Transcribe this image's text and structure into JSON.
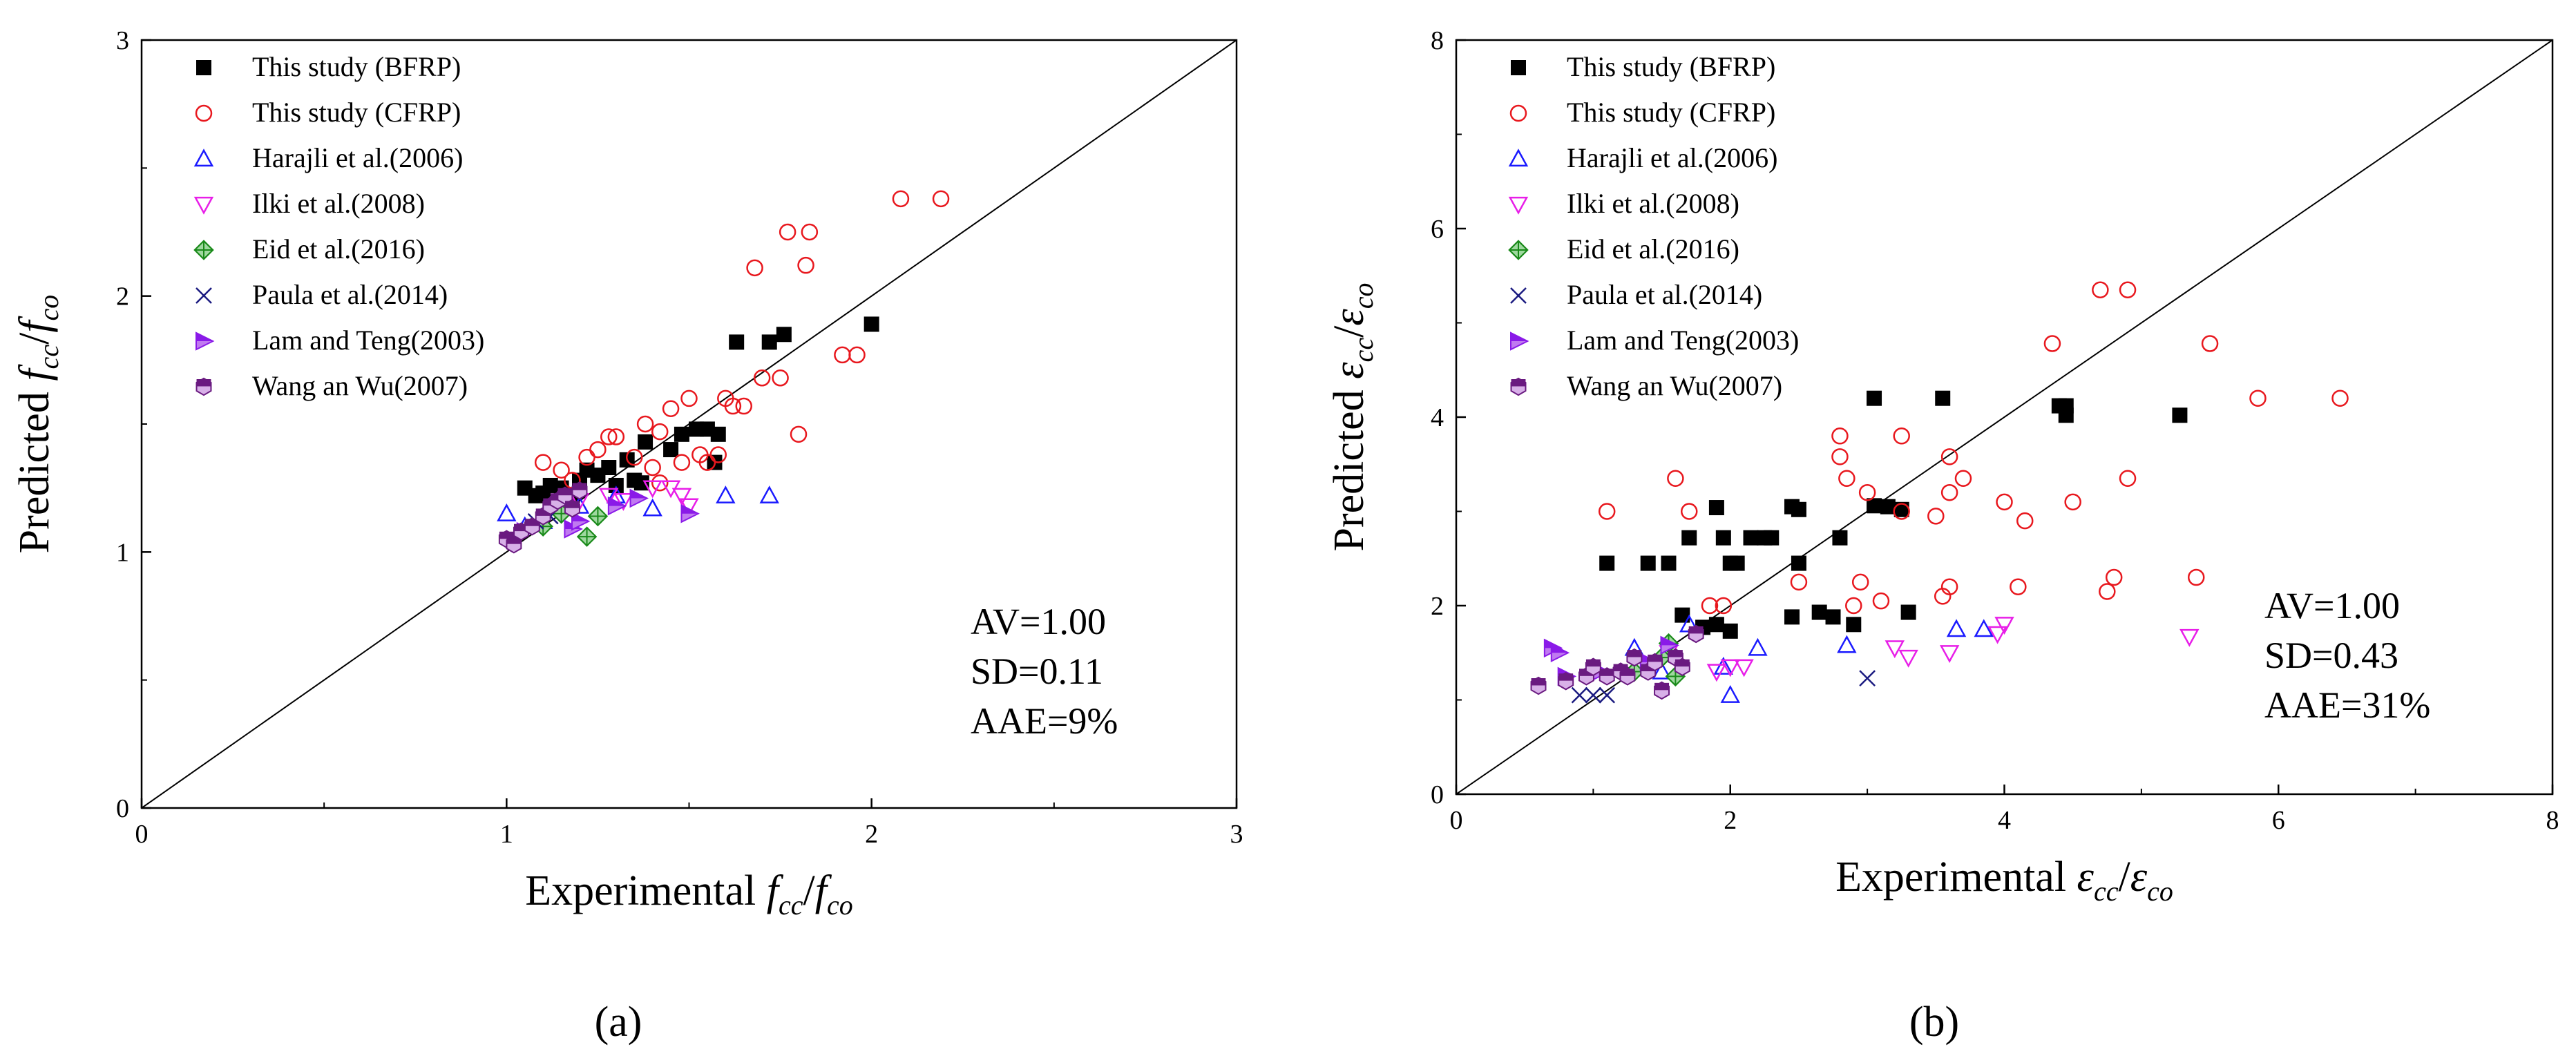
{
  "figure": {
    "panel_a_label": "(a)",
    "panel_b_label": "(b)"
  },
  "legend_entries": [
    {
      "name": "This study (BFRP)",
      "marker": "square",
      "color": "#000000"
    },
    {
      "name": "This study (CFRP)",
      "marker": "circle",
      "color": "#e8181e"
    },
    {
      "name": "Harajli et al.(2006)",
      "marker": "triangle-up",
      "color": "#1a1aff"
    },
    {
      "name": "Ilki et al.(2008)",
      "marker": "triangle-down",
      "color": "#e81ee8"
    },
    {
      "name": "Eid et al.(2016)",
      "marker": "diamond-plus",
      "color": "#1a8a1a"
    },
    {
      "name": "Paula et al.(2014)",
      "marker": "x",
      "color": "#1a1a80"
    },
    {
      "name": "Lam and Teng(2003)",
      "marker": "triangle-right",
      "color": "#8a1ae8"
    },
    {
      "name": "Wang an Wu(2007)",
      "marker": "hexagon",
      "color": "#6a1a80"
    }
  ],
  "chart_data": [
    {
      "id": "a",
      "type": "scatter",
      "title": "",
      "xlabel_prefix": "Experimental",
      "xlabel_vars": [
        "f",
        "cc",
        "/",
        "f",
        "co"
      ],
      "ylabel_prefix": "Predicted",
      "xlim": [
        0,
        3
      ],
      "ylim": [
        0,
        3
      ],
      "xticks": [
        "0",
        "1",
        "2",
        "3"
      ],
      "yticks": [
        "0",
        "1",
        "2",
        "3"
      ],
      "diagonal": true,
      "stats": [
        "AV=1.00",
        "SD=0.11",
        "AAE=9%"
      ],
      "series": [
        {
          "name": "This study (BFRP)",
          "points": [
            [
              1.05,
              1.25
            ],
            [
              1.08,
              1.22
            ],
            [
              1.1,
              1.23
            ],
            [
              1.12,
              1.26
            ],
            [
              1.15,
              1.25
            ],
            [
              1.18,
              1.22
            ],
            [
              1.2,
              1.28
            ],
            [
              1.22,
              1.32
            ],
            [
              1.25,
              1.3
            ],
            [
              1.28,
              1.33
            ],
            [
              1.3,
              1.26
            ],
            [
              1.33,
              1.36
            ],
            [
              1.35,
              1.28
            ],
            [
              1.37,
              1.27
            ],
            [
              1.38,
              1.43
            ],
            [
              1.45,
              1.4
            ],
            [
              1.48,
              1.46
            ],
            [
              1.52,
              1.48
            ],
            [
              1.55,
              1.48
            ],
            [
              1.58,
              1.46
            ],
            [
              1.57,
              1.35
            ],
            [
              1.63,
              1.82
            ],
            [
              1.72,
              1.82
            ],
            [
              1.76,
              1.85
            ],
            [
              2.0,
              1.89
            ]
          ]
        },
        {
          "name": "This study (CFRP)",
          "points": [
            [
              1.1,
              1.35
            ],
            [
              1.15,
              1.32
            ],
            [
              1.18,
              1.28
            ],
            [
              1.22,
              1.37
            ],
            [
              1.25,
              1.4
            ],
            [
              1.28,
              1.45
            ],
            [
              1.3,
              1.45
            ],
            [
              1.35,
              1.37
            ],
            [
              1.38,
              1.5
            ],
            [
              1.4,
              1.33
            ],
            [
              1.42,
              1.47
            ],
            [
              1.45,
              1.56
            ],
            [
              1.48,
              1.35
            ],
            [
              1.5,
              1.6
            ],
            [
              1.53,
              1.38
            ],
            [
              1.55,
              1.35
            ],
            [
              1.58,
              1.38
            ],
            [
              1.6,
              1.6
            ],
            [
              1.62,
              1.57
            ],
            [
              1.65,
              1.57
            ],
            [
              1.68,
              2.11
            ],
            [
              1.7,
              1.68
            ],
            [
              1.75,
              1.68
            ],
            [
              1.77,
              2.25
            ],
            [
              1.8,
              1.46
            ],
            [
              1.82,
              2.12
            ],
            [
              1.83,
              2.25
            ],
            [
              1.92,
              1.77
            ],
            [
              1.96,
              1.77
            ],
            [
              2.08,
              2.38
            ],
            [
              2.19,
              2.38
            ],
            [
              1.42,
              1.27
            ]
          ]
        },
        {
          "name": "Harajli et al.(2006)",
          "points": [
            [
              1.0,
              1.15
            ],
            [
              1.05,
              1.1
            ],
            [
              1.1,
              1.12
            ],
            [
              1.2,
              1.18
            ],
            [
              1.3,
              1.22
            ],
            [
              1.4,
              1.17
            ],
            [
              1.6,
              1.22
            ],
            [
              1.72,
              1.22
            ]
          ]
        },
        {
          "name": "Ilki et al.(2008)",
          "points": [
            [
              1.15,
              1.18
            ],
            [
              1.2,
              1.2
            ],
            [
              1.28,
              1.22
            ],
            [
              1.32,
              1.2
            ],
            [
              1.4,
              1.25
            ],
            [
              1.45,
              1.25
            ],
            [
              1.48,
              1.22
            ],
            [
              1.5,
              1.18
            ]
          ]
        },
        {
          "name": "Eid et al.(2016)",
          "points": [
            [
              1.1,
              1.1
            ],
            [
              1.15,
              1.15
            ],
            [
              1.22,
              1.06
            ],
            [
              1.25,
              1.14
            ]
          ]
        },
        {
          "name": "Paula et al.(2014)",
          "points": [
            [
              1.08,
              1.12
            ],
            [
              1.12,
              1.14
            ]
          ]
        },
        {
          "name": "Lam and Teng(2003)",
          "points": [
            [
              1.05,
              1.08
            ],
            [
              1.18,
              1.09
            ],
            [
              1.2,
              1.12
            ],
            [
              1.3,
              1.18
            ],
            [
              1.36,
              1.21
            ],
            [
              1.5,
              1.15
            ]
          ]
        },
        {
          "name": "Wang an Wu(2007)",
          "points": [
            [
              1.0,
              1.05
            ],
            [
              1.02,
              1.03
            ],
            [
              1.04,
              1.08
            ],
            [
              1.07,
              1.1
            ],
            [
              1.1,
              1.14
            ],
            [
              1.12,
              1.18
            ],
            [
              1.14,
              1.2
            ],
            [
              1.16,
              1.22
            ],
            [
              1.18,
              1.17
            ],
            [
              1.2,
              1.24
            ]
          ]
        }
      ]
    },
    {
      "id": "b",
      "type": "scatter",
      "title": "",
      "xlabel_prefix": "Experimental",
      "xlabel_vars": [
        "ε",
        "cc",
        "/",
        "ε",
        "co"
      ],
      "ylabel_prefix": "Predicted",
      "xlim": [
        0,
        8
      ],
      "ylim": [
        0,
        8
      ],
      "xticks": [
        "0",
        "2",
        "4",
        "6",
        "8"
      ],
      "yticks": [
        "0",
        "2",
        "4",
        "6",
        "8"
      ],
      "diagonal": true,
      "stats": [
        "AV=1.00",
        "SD=0.43",
        "AAE=31%"
      ],
      "series": [
        {
          "name": "This study (BFRP)",
          "points": [
            [
              1.1,
              2.45
            ],
            [
              1.4,
              2.45
            ],
            [
              1.55,
              2.45
            ],
            [
              1.7,
              2.72
            ],
            [
              1.9,
              3.04
            ],
            [
              1.95,
              2.72
            ],
            [
              2.0,
              2.45
            ],
            [
              2.05,
              2.45
            ],
            [
              2.15,
              2.72
            ],
            [
              2.25,
              2.72
            ],
            [
              2.3,
              2.72
            ],
            [
              2.45,
              3.05
            ],
            [
              2.5,
              3.02
            ],
            [
              2.5,
              2.45
            ],
            [
              2.8,
              2.72
            ],
            [
              1.65,
              1.9
            ],
            [
              1.8,
              1.77
            ],
            [
              1.9,
              1.8
            ],
            [
              2.0,
              1.73
            ],
            [
              2.45,
              1.88
            ],
            [
              2.65,
              1.93
            ],
            [
              2.75,
              1.88
            ],
            [
              2.9,
              1.8
            ],
            [
              3.05,
              4.2
            ],
            [
              3.05,
              3.06
            ],
            [
              3.15,
              3.05
            ],
            [
              3.25,
              3.02
            ],
            [
              3.3,
              1.93
            ],
            [
              3.55,
              4.2
            ],
            [
              4.4,
              4.12
            ],
            [
              4.45,
              4.02
            ],
            [
              4.45,
              4.12
            ],
            [
              5.28,
              4.02
            ]
          ]
        },
        {
          "name": "This study (CFRP)",
          "points": [
            [
              1.1,
              3.0
            ],
            [
              1.6,
              3.35
            ],
            [
              1.7,
              3.0
            ],
            [
              1.85,
              2.0
            ],
            [
              1.95,
              2.0
            ],
            [
              2.5,
              2.25
            ],
            [
              2.8,
              3.8
            ],
            [
              2.8,
              3.58
            ],
            [
              2.85,
              3.35
            ],
            [
              2.9,
              2.0
            ],
            [
              2.95,
              2.25
            ],
            [
              3.0,
              3.2
            ],
            [
              3.1,
              2.05
            ],
            [
              3.25,
              3.8
            ],
            [
              3.25,
              3.0
            ],
            [
              3.5,
              2.95
            ],
            [
              3.55,
              2.1
            ],
            [
              3.6,
              3.58
            ],
            [
              3.6,
              3.2
            ],
            [
              3.7,
              3.35
            ],
            [
              3.6,
              2.2
            ],
            [
              4.0,
              3.1
            ],
            [
              4.1,
              2.2
            ],
            [
              4.15,
              2.9
            ],
            [
              4.35,
              4.78
            ],
            [
              4.5,
              3.1
            ],
            [
              4.7,
              5.35
            ],
            [
              4.75,
              2.15
            ],
            [
              4.8,
              2.3
            ],
            [
              4.9,
              3.35
            ],
            [
              4.9,
              5.35
            ],
            [
              5.4,
              2.3
            ],
            [
              5.5,
              4.78
            ],
            [
              5.85,
              4.2
            ],
            [
              6.45,
              4.2
            ]
          ]
        },
        {
          "name": "Harajli et al.(2006)",
          "points": [
            [
              1.3,
              1.55
            ],
            [
              1.5,
              1.3
            ],
            [
              1.7,
              1.8
            ],
            [
              1.95,
              1.35
            ],
            [
              2.0,
              1.05
            ],
            [
              2.2,
              1.55
            ],
            [
              2.85,
              1.58
            ],
            [
              3.65,
              1.75
            ],
            [
              3.85,
              1.75
            ]
          ]
        },
        {
          "name": "Ilki et al.(2008)",
          "points": [
            [
              1.4,
              1.35
            ],
            [
              1.55,
              1.5
            ],
            [
              1.9,
              1.3
            ],
            [
              2.0,
              1.35
            ],
            [
              2.1,
              1.35
            ],
            [
              3.2,
              1.55
            ],
            [
              3.3,
              1.45
            ],
            [
              3.6,
              1.5
            ],
            [
              3.95,
              1.7
            ],
            [
              4.0,
              1.8
            ],
            [
              5.35,
              1.67
            ]
          ]
        },
        {
          "name": "Eid et al.(2016)",
          "points": [
            [
              1.3,
              1.3
            ],
            [
              1.5,
              1.45
            ],
            [
              1.55,
              1.6
            ],
            [
              1.6,
              1.25
            ]
          ]
        },
        {
          "name": "Paula et al.(2014)",
          "points": [
            [
              0.9,
              1.05
            ],
            [
              1.0,
              1.05
            ],
            [
              1.1,
              1.05
            ],
            [
              3.0,
              1.23
            ]
          ]
        },
        {
          "name": "Lam and Teng(2003)",
          "points": [
            [
              0.7,
              1.55
            ],
            [
              0.75,
              1.5
            ],
            [
              0.8,
              1.25
            ],
            [
              1.05,
              1.3
            ],
            [
              1.4,
              1.4
            ],
            [
              1.55,
              1.58
            ]
          ]
        },
        {
          "name": "Wang an Wu(2007)",
          "points": [
            [
              0.6,
              1.15
            ],
            [
              0.8,
              1.2
            ],
            [
              0.95,
              1.25
            ],
            [
              1.0,
              1.35
            ],
            [
              1.1,
              1.25
            ],
            [
              1.2,
              1.3
            ],
            [
              1.25,
              1.25
            ],
            [
              1.3,
              1.45
            ],
            [
              1.4,
              1.3
            ],
            [
              1.45,
              1.4
            ],
            [
              1.6,
              1.45
            ],
            [
              1.65,
              1.35
            ],
            [
              1.75,
              1.7
            ],
            [
              1.5,
              1.1
            ]
          ]
        }
      ]
    }
  ]
}
